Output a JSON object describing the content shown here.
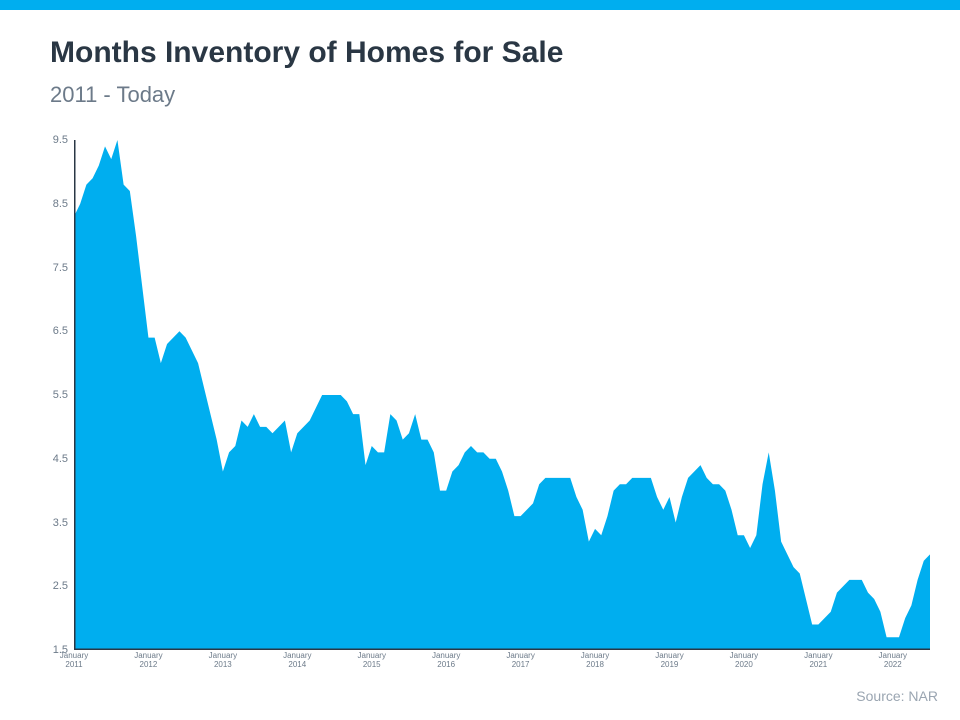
{
  "accent_color": "#00aeef",
  "top_bar_height": 10,
  "title": {
    "text": "Months Inventory of Homes for Sale",
    "color": "#2a3744",
    "fontsize": 30,
    "weight": 700
  },
  "subtitle": {
    "text": "2011 - Today",
    "color": "#6c7a89",
    "fontsize": 22,
    "weight": 400
  },
  "source": {
    "text": "Source: NAR",
    "color": "#9aa5b1",
    "fontsize": 14
  },
  "chart": {
    "type": "area",
    "background_color": "#ffffff",
    "series_color": "#00aeef",
    "axis_line_color": "#2a3744",
    "axis_line_width": 1.5,
    "ylim": [
      1.5,
      9.5
    ],
    "ytick_step": 1.0,
    "yticks": [
      1.5,
      2.5,
      3.5,
      4.5,
      5.5,
      6.5,
      7.5,
      8.5,
      9.5
    ],
    "ytick_fontsize": 11,
    "ytick_color": "#6c7a89",
    "x_start_index": 0,
    "x_end_index": 138,
    "xticks": [
      {
        "index": 0,
        "month": "January",
        "year": "2011"
      },
      {
        "index": 12,
        "month": "January",
        "year": "2012"
      },
      {
        "index": 24,
        "month": "January",
        "year": "2013"
      },
      {
        "index": 36,
        "month": "January",
        "year": "2014"
      },
      {
        "index": 48,
        "month": "January",
        "year": "2015"
      },
      {
        "index": 60,
        "month": "January",
        "year": "2016"
      },
      {
        "index": 72,
        "month": "January",
        "year": "2017"
      },
      {
        "index": 84,
        "month": "January",
        "year": "2018"
      },
      {
        "index": 96,
        "month": "January",
        "year": "2019"
      },
      {
        "index": 108,
        "month": "January",
        "year": "2020"
      },
      {
        "index": 120,
        "month": "January",
        "year": "2021"
      },
      {
        "index": 132,
        "month": "January",
        "year": "2022"
      }
    ],
    "xtick_fontsize": 8,
    "xtick_color": "#6c7a89",
    "values": [
      8.3,
      8.5,
      8.8,
      8.9,
      9.1,
      9.4,
      9.2,
      9.5,
      8.8,
      8.7,
      8.0,
      7.2,
      6.4,
      6.4,
      6.0,
      6.3,
      6.4,
      6.5,
      6.4,
      6.2,
      6.0,
      5.6,
      5.2,
      4.8,
      4.3,
      4.6,
      4.7,
      5.1,
      5.0,
      5.2,
      5.0,
      5.0,
      4.9,
      5.0,
      5.1,
      4.6,
      4.9,
      5.0,
      5.1,
      5.3,
      5.5,
      5.5,
      5.5,
      5.5,
      5.4,
      5.2,
      5.2,
      4.4,
      4.7,
      4.6,
      4.6,
      5.2,
      5.1,
      4.8,
      4.9,
      5.2,
      4.8,
      4.8,
      4.6,
      4.0,
      4.0,
      4.3,
      4.4,
      4.6,
      4.7,
      4.6,
      4.6,
      4.5,
      4.5,
      4.3,
      4.0,
      3.6,
      3.6,
      3.7,
      3.8,
      4.1,
      4.2,
      4.2,
      4.2,
      4.2,
      4.2,
      3.9,
      3.7,
      3.2,
      3.4,
      3.3,
      3.6,
      4.0,
      4.1,
      4.1,
      4.2,
      4.2,
      4.2,
      4.2,
      3.9,
      3.7,
      3.9,
      3.5,
      3.9,
      4.2,
      4.3,
      4.4,
      4.2,
      4.1,
      4.1,
      4.0,
      3.7,
      3.3,
      3.3,
      3.1,
      3.3,
      4.1,
      4.6,
      4.0,
      3.2,
      3.0,
      2.8,
      2.7,
      2.3,
      1.9,
      1.9,
      2.0,
      2.1,
      2.4,
      2.5,
      2.6,
      2.6,
      2.6,
      2.4,
      2.3,
      2.1,
      1.7,
      1.7,
      1.7,
      2.0,
      2.2,
      2.6,
      2.9,
      3.0
    ]
  }
}
